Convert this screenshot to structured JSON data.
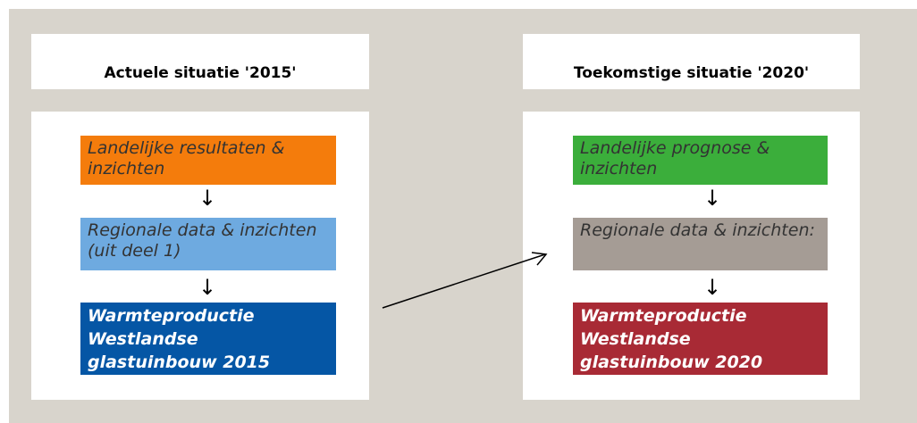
{
  "columns": [
    {
      "header": "Actuele situatie '2015'",
      "boxes": [
        "Landelijke resultaten & inzichten",
        "Regionale data & inzichten (uit deel 1)",
        "Warmteproductie Westlandse glastuinbouw 2015"
      ]
    },
    {
      "header": "Toekomstige situatie '2020'",
      "boxes": [
        "Landelijke prognose & inzichten",
        "Regionale data & inzichten:",
        "Warmteproductie Westlandse glastuinbouw 2020"
      ]
    }
  ]
}
